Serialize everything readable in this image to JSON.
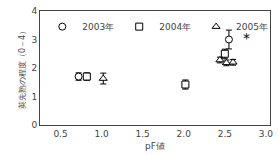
{
  "chart_data": {
    "type": "scatter",
    "xlabel": "pF値",
    "ylabel": "莢先熟の程度（0－4）",
    "xlim": [
      0.25,
      3.05
    ],
    "ylim": [
      0,
      4
    ],
    "xticks": [
      0.5,
      {
        "value": 1,
        "label": "1.0"
      },
      1.5,
      {
        "value": 2,
        "label": "2.0"
      },
      2.5,
      {
        "value": 3,
        "label": "3.0"
      }
    ],
    "yticks": [
      0,
      1,
      2,
      3,
      4
    ],
    "grid": false,
    "legend": "upper left",
    "series": [
      {
        "name": "2003年",
        "marker": "circle",
        "color": "black",
        "x": [
          0.72,
          2.55
        ],
        "values": [
          1.7,
          3.0
        ],
        "yerr": [
          0.13,
          0.33
        ]
      },
      {
        "name": "2004年",
        "marker": "square",
        "color": "black",
        "x": [
          0.82,
          2.02,
          2.5
        ],
        "values": [
          1.7,
          1.42,
          2.5
        ],
        "yerr": [
          0.13,
          0.16,
          0.16
        ]
      },
      {
        "name": "2005年",
        "marker": "triangle-up",
        "color": "black",
        "x": [
          1.02,
          2.44,
          2.52,
          2.6
        ],
        "values": [
          1.63,
          2.28,
          2.18,
          2.2
        ],
        "yerr": [
          0.19,
          0.1,
          0.1,
          0.1
        ]
      }
    ],
    "annotations": [
      {
        "text": "*",
        "x": 2.76,
        "y": 3.05
      }
    ]
  }
}
